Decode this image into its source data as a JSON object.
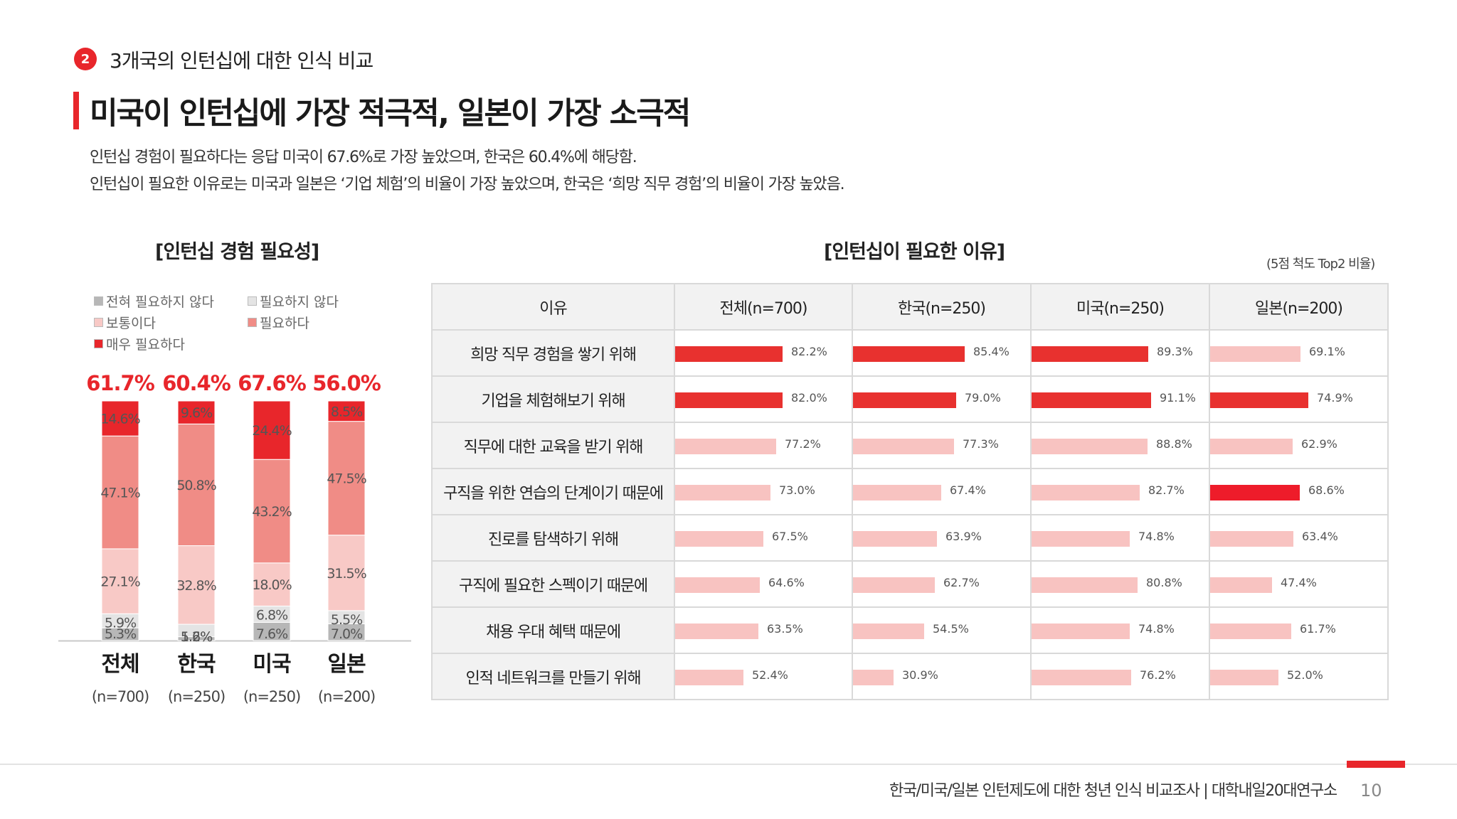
{
  "section": {
    "number": "2",
    "title": "3개국의 인턴십에 대한 인식 비교"
  },
  "headline": "미국이 인턴십에 가장 적극적, 일본이 가장 소극적",
  "description": [
    "인턴십 경험이 필요하다는 응답 미국이 67.6%로 가장 높았으며, 한국은 60.4%에 해당함.",
    "인턴십이 필요한 이유로는 미국과 일본은 ‘기업 체험’의 비율이 가장 높았으며, 한국은 ‘희망 직무 경험’의 비율이 가장 높았음."
  ],
  "left_chart_title": "[인턴십 경험 필요성]",
  "right_chart_title": "[인턴십이 필요한 이유]",
  "scale_note": "(5점 척도 Top2 비율)",
  "colors": {
    "accent": "#e8262b",
    "not_at_all": "#b7b7b7",
    "not_needed": "#e4e4e4",
    "neutral": "#f8c9c6",
    "needed": "#f08c86",
    "very_needed": "#e8262b",
    "bar_top": "#e8312f",
    "bar_light": "#f8c3c1",
    "bar_strong": "#ee1c2a"
  },
  "footer": {
    "text": "한국/미국/일본 인턴제도에 대한 청년 인식 비교조사 | 대학내일20대연구소",
    "page": "10"
  },
  "chart_data": [
    {
      "type": "bar",
      "stacked": true,
      "title": "[인턴십 경험 필요성]",
      "categories": [
        "전체",
        "한국",
        "미국",
        "일본"
      ],
      "sample_sizes": [
        "(n=700)",
        "(n=250)",
        "(n=250)",
        "(n=200)"
      ],
      "top2_totals": [
        "61.7%",
        "60.4%",
        "67.6%",
        "56.0%"
      ],
      "ylim": [
        0,
        100
      ],
      "legend": [
        "전혀 필요하지 않다",
        "필요하지 않다",
        "보통이다",
        "필요하다",
        "매우 필요하다"
      ],
      "series": [
        {
          "name": "전혀 필요하지 않다",
          "values": [
            5.3,
            1.6,
            7.6,
            7.0
          ],
          "labels": [
            "5.3%",
            "1.6%",
            "7.6%",
            "7.0%"
          ]
        },
        {
          "name": "필요하지 않다",
          "values": [
            5.9,
            5.2,
            6.8,
            5.5
          ],
          "labels": [
            "5.9%",
            "5.2%",
            "6.8%",
            "5.5%"
          ]
        },
        {
          "name": "보통이다",
          "values": [
            27.1,
            32.8,
            18.0,
            31.5
          ],
          "labels": [
            "27.1%",
            "32.8%",
            "18.0%",
            "31.5%"
          ]
        },
        {
          "name": "필요하다",
          "values": [
            47.1,
            50.8,
            43.2,
            47.5
          ],
          "labels": [
            "47.1%",
            "50.8%",
            "43.2%",
            "47.5%"
          ]
        },
        {
          "name": "매우 필요하다",
          "values": [
            14.6,
            9.6,
            24.4,
            8.5
          ],
          "labels": [
            "14.6%",
            "9.6%",
            "24.4%",
            "8.5%"
          ]
        }
      ]
    },
    {
      "type": "table",
      "title": "[인턴십이 필요한 이유]",
      "columns": [
        "이유",
        "전체(n=700)",
        "한국(n=250)",
        "미국(n=250)",
        "일본(n=200)"
      ],
      "rows": [
        {
          "reason": "희망 직무 경험을 쌓기 위해",
          "values": [
            82.2,
            85.4,
            89.3,
            69.1
          ],
          "labels": [
            "82.2%",
            "85.4%",
            "89.3%",
            "69.1%"
          ],
          "highlight": [
            "top",
            "top",
            "top",
            "none"
          ]
        },
        {
          "reason": "기업을 체험해보기 위해",
          "values": [
            82.0,
            79.0,
            91.1,
            74.9
          ],
          "labels": [
            "82.0%",
            "79.0%",
            "91.1%",
            "74.9%"
          ],
          "highlight": [
            "top",
            "top",
            "top",
            "top"
          ]
        },
        {
          "reason": "직무에 대한 교육을 받기 위해",
          "values": [
            77.2,
            77.3,
            88.8,
            62.9
          ],
          "labels": [
            "77.2%",
            "77.3%",
            "88.8%",
            "62.9%"
          ],
          "highlight": [
            "none",
            "none",
            "none",
            "none"
          ]
        },
        {
          "reason": "구직을 위한 연습의 단계이기 때문에",
          "values": [
            73.0,
            67.4,
            82.7,
            68.6
          ],
          "labels": [
            "73.0%",
            "67.4%",
            "82.7%",
            "68.6%"
          ],
          "highlight": [
            "none",
            "none",
            "none",
            "strong"
          ]
        },
        {
          "reason": "진로를 탐색하기 위해",
          "values": [
            67.5,
            63.9,
            74.8,
            63.4
          ],
          "labels": [
            "67.5%",
            "63.9%",
            "74.8%",
            "63.4%"
          ],
          "highlight": [
            "none",
            "none",
            "none",
            "none"
          ]
        },
        {
          "reason": "구직에 필요한 스펙이기 때문에",
          "values": [
            64.6,
            62.7,
            80.8,
            47.4
          ],
          "labels": [
            "64.6%",
            "62.7%",
            "80.8%",
            "47.4%"
          ],
          "highlight": [
            "none",
            "none",
            "none",
            "none"
          ]
        },
        {
          "reason": "채용 우대 혜택 때문에",
          "values": [
            63.5,
            54.5,
            74.8,
            61.7
          ],
          "labels": [
            "63.5%",
            "54.5%",
            "74.8%",
            "61.7%"
          ],
          "highlight": [
            "none",
            "none",
            "none",
            "none"
          ]
        },
        {
          "reason": "인적 네트워크를 만들기 위해",
          "values": [
            52.4,
            30.9,
            76.2,
            52.0
          ],
          "labels": [
            "52.4%",
            "30.9%",
            "76.2%",
            "52.0%"
          ],
          "highlight": [
            "none",
            "none",
            "none",
            "none"
          ]
        }
      ]
    }
  ]
}
